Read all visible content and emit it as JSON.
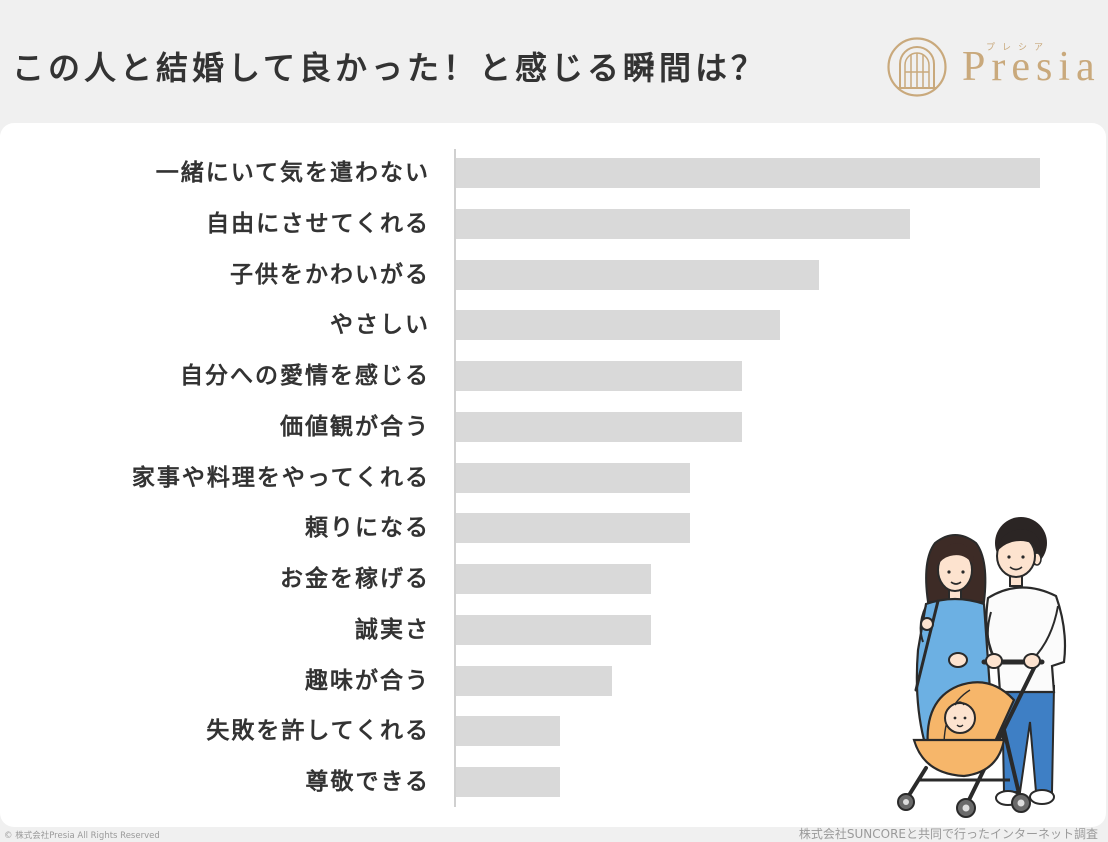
{
  "header": {
    "logo": {
      "ruby": "プレシア",
      "name": "Presia",
      "emblem_icon": "arched-window-emblem-icon"
    }
  },
  "chart_data": {
    "type": "bar",
    "orientation": "horizontal",
    "title": "この人と結婚して良かった！と感じる瞬間は？",
    "categories": [
      "一緒にいて気を遣わない",
      "自由にさせてくれる",
      "子供をかわいがる",
      "やさしい",
      "自分への愛情を感じる",
      "価値観が合う",
      "家事や料理をやってくれる",
      "頼りになる",
      "お金を稼げる",
      "誠実さ",
      "趣味が合う",
      "失敗を許してくれる",
      "尊敬できる"
    ],
    "values": [
      45,
      35,
      28,
      25,
      22,
      22,
      18,
      18,
      15,
      15,
      12,
      8,
      8
    ],
    "grid": false,
    "legend": "none"
  },
  "footer": {
    "copyright": "© 株式会社Presia All Rights Reserved",
    "source": "株式会社SUNCOREと共同で行ったインターネット調査"
  },
  "colors": {
    "background": "#f0f0f0",
    "card": "#ffffff",
    "title_text": "#333333",
    "bar": "#d9d9d9",
    "axis_line": "#d0d0d0",
    "brand": "#c9a97c",
    "footer_text": "#9a9a9a"
  }
}
